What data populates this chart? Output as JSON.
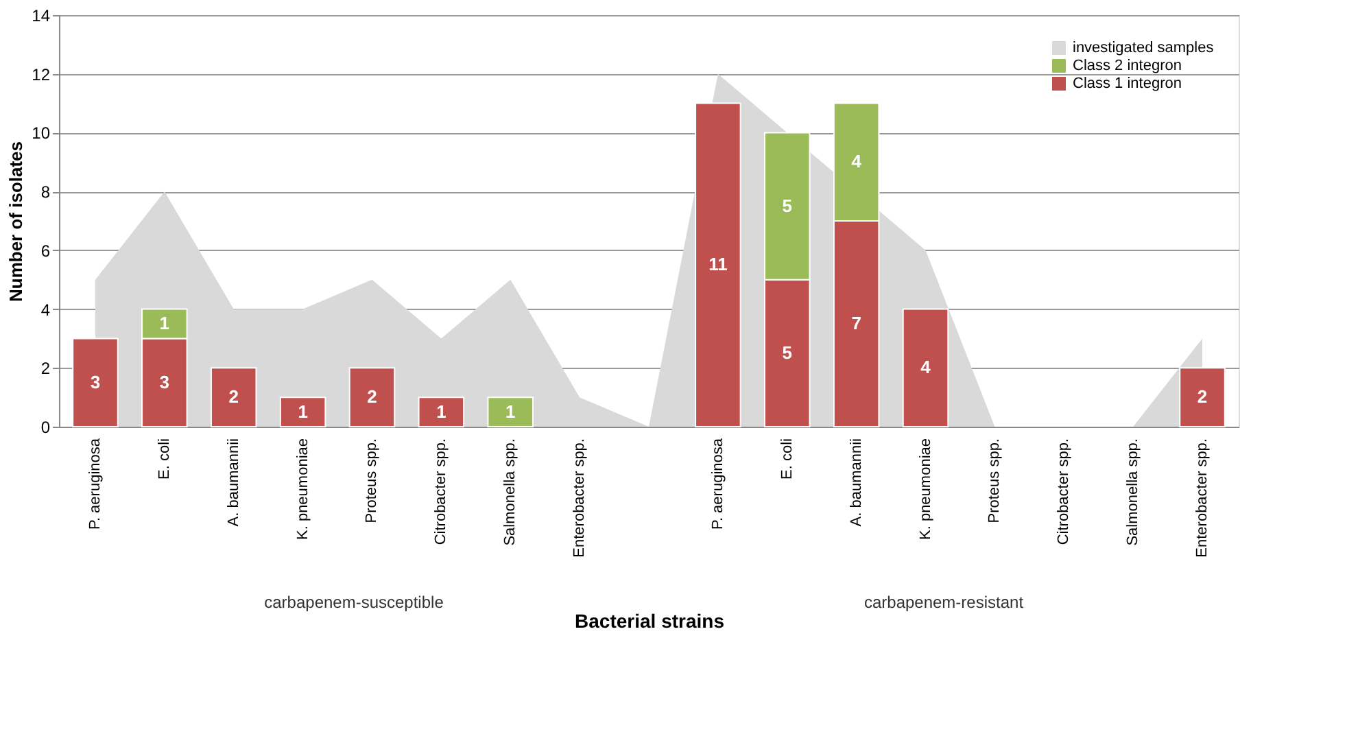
{
  "chart_data": {
    "type": "bar",
    "xlabel": "Bacterial strains",
    "ylabel": "Number of isolates",
    "categories": [
      "P. aeruginosa",
      "E. coli",
      "A. baumannii",
      "K. pneumoniae",
      "Proteus spp.",
      "Citrobacter spp.",
      "Salmonella spp.",
      "Enterobacter spp.",
      null,
      "P. aeruginosa",
      "E. coli",
      "A. baumannii",
      "K. pneumoniae",
      "Proteus spp.",
      "Citrobacter spp.",
      "Salmonella spp.",
      "Enterobacter spp."
    ],
    "series": [
      {
        "name": "Class 1 integron",
        "color": "#c0504d",
        "values": [
          3,
          3,
          2,
          1,
          2,
          1,
          null,
          null,
          null,
          11,
          5,
          7,
          4,
          null,
          null,
          null,
          2
        ],
        "value_labels": [
          "3",
          "3",
          "2",
          "1",
          "2",
          "1",
          null,
          null,
          null,
          "11",
          "5",
          "7",
          "4",
          null,
          null,
          null,
          "2"
        ]
      },
      {
        "name": "Class 2 integron",
        "color": "#9bbb59",
        "values": [
          null,
          1,
          null,
          null,
          null,
          null,
          1,
          null,
          null,
          null,
          5,
          4,
          null,
          null,
          null,
          null,
          null
        ],
        "base": [
          null,
          3,
          null,
          null,
          null,
          null,
          0,
          null,
          null,
          null,
          5,
          7,
          null,
          null,
          null,
          null,
          null
        ],
        "value_labels": [
          null,
          "1",
          null,
          null,
          null,
          null,
          "1",
          null,
          null,
          null,
          "5",
          "4",
          null,
          null,
          null,
          null,
          null
        ]
      },
      {
        "name": "investigated samples",
        "type": "area",
        "color": "#d9d9d9",
        "values": [
          5,
          8,
          4,
          4,
          5,
          3,
          5,
          1,
          0,
          12,
          null,
          null,
          6,
          0,
          0,
          0,
          3
        ]
      }
    ],
    "ylim": [
      0,
      14
    ],
    "yticks": [
      0,
      2,
      4,
      6,
      8,
      10,
      12,
      14
    ],
    "grid": "y",
    "legend": "top right",
    "annotations": [
      "carbapenem-susceptible",
      "carbapenem-resistant"
    ]
  }
}
